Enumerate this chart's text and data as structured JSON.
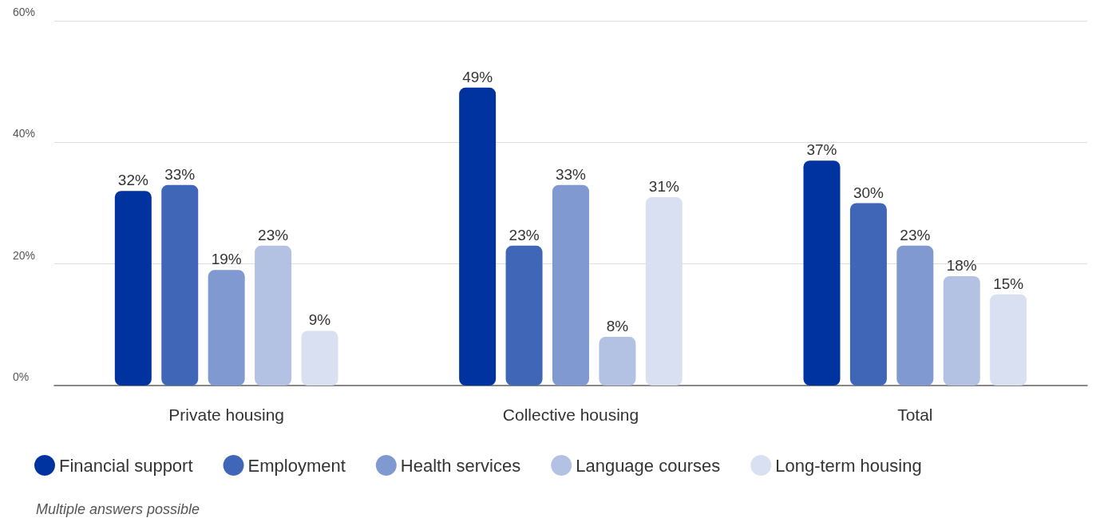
{
  "chart_data": {
    "type": "bar",
    "categories": [
      "Private housing",
      "Collective housing",
      "Total"
    ],
    "series": [
      {
        "name": "Financial support",
        "color": "#0033a0",
        "values": [
          32,
          49,
          37
        ],
        "value_labels": [
          "32%",
          "49%",
          "37%"
        ]
      },
      {
        "name": "Employment",
        "color": "#4066b8",
        "values": [
          33,
          23,
          30
        ],
        "value_labels": [
          "33%",
          "23%",
          "30%"
        ]
      },
      {
        "name": "Health services",
        "color": "#8099d0",
        "values": [
          19,
          33,
          23
        ],
        "value_labels": [
          "19%",
          "33%",
          "23%"
        ]
      },
      {
        "name": "Language courses",
        "color": "#b3c2e3",
        "values": [
          23,
          8,
          18
        ],
        "value_labels": [
          "23%",
          "8%",
          "18%"
        ]
      },
      {
        "name": "Long-term housing",
        "color": "#d9e0f1",
        "values": [
          9,
          31,
          15
        ],
        "value_labels": [
          "9%",
          "31%",
          "15%"
        ]
      }
    ],
    "ylim": [
      0,
      60
    ],
    "yticks": [
      {
        "value": 0,
        "label": "0%"
      },
      {
        "value": 20,
        "label": "20%"
      },
      {
        "value": 40,
        "label": "40%"
      },
      {
        "value": 60,
        "label": "60%"
      }
    ],
    "grid": "y",
    "legend": "bottom",
    "annotations": [
      "Multiple answers possible"
    ]
  }
}
